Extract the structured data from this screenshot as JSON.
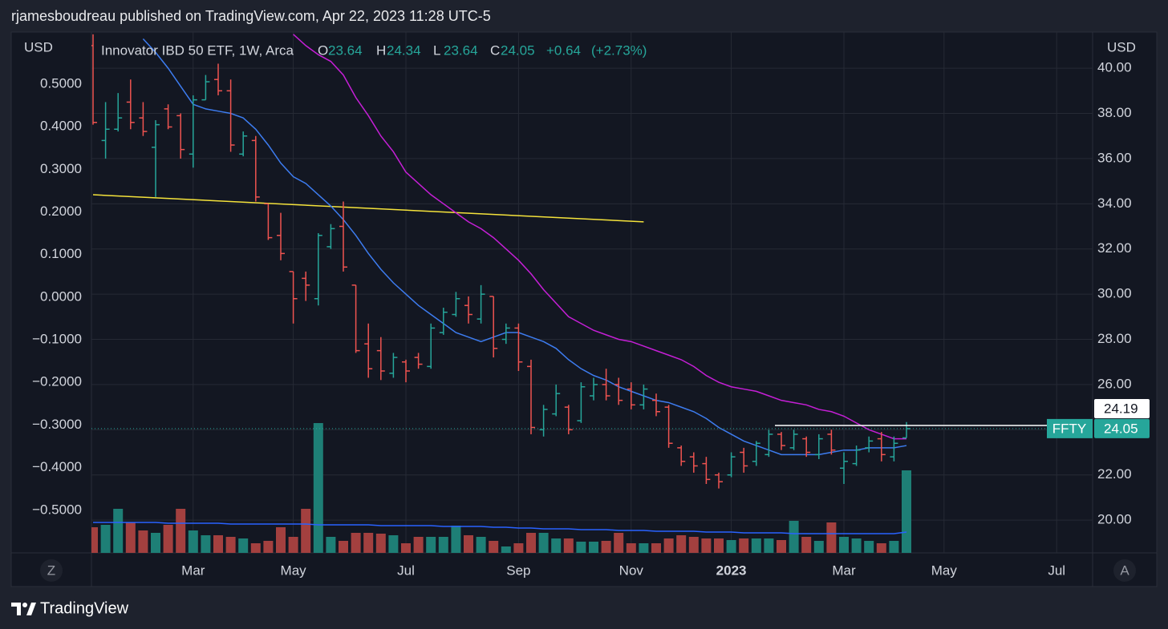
{
  "header": "rjamesboudreau published on TradingView.com, Apr 22, 2023 11:28 UTC-5",
  "footer": "TradingView",
  "chart_data": {
    "type": "ohlc",
    "title": "Innovator IBD 50 ETF, 1W, Arca",
    "symbol": "FFTY",
    "legend_labels": {
      "open": "O",
      "high": "H",
      "low": "L",
      "close": "C"
    },
    "change": {
      "value": 0.64,
      "label": "+0.64"
    },
    "change_pct": {
      "value": 2.73,
      "label": "(+2.73%)"
    },
    "ylabel": "USD",
    "y2label": "USD",
    "axis_buttons": [
      "Z",
      "A"
    ],
    "up_color": "#26a69a",
    "down_color": "#ef5350",
    "volume_up_color": "#1e7f76",
    "volume_down_color": "#a3403f",
    "volume_ma_color": "#2962ff",
    "grid": true,
    "categories": [
      null,
      null,
      null,
      null,
      null,
      null,
      null,
      null,
      "Mar",
      null,
      null,
      null,
      null,
      null,
      null,
      null,
      "May",
      null,
      null,
      null,
      null,
      null,
      null,
      null,
      null,
      "Jul",
      null,
      null,
      null,
      null,
      null,
      null,
      null,
      null,
      "Sep",
      null,
      null,
      null,
      null,
      null,
      null,
      null,
      null,
      "Nov",
      null,
      null,
      null,
      null,
      null,
      null,
      null,
      "2023",
      null,
      null,
      null,
      null,
      null,
      null,
      null,
      null,
      "Mar",
      null,
      null,
      null,
      null,
      null,
      null,
      null,
      "May",
      null,
      null,
      null,
      null,
      null,
      null,
      null,
      null,
      "Jul",
      null,
      null
    ],
    "open": [
      41.0,
      36.8,
      37.3,
      38.5,
      37.8,
      36.5,
      38.2,
      37.9,
      36.2,
      38.6,
      39.5,
      39.0,
      36.2,
      36.8,
      34.0,
      32.6,
      31.0,
      30.7,
      29.8,
      32.1,
      33.0,
      30.4,
      27.8,
      27.5,
      26.5,
      27.0,
      27.2,
      26.8,
      28.3,
      29.1,
      29.5,
      28.9,
      29.9,
      28.0,
      28.5,
      26.8,
      24.0,
      24.7,
      25.0,
      24.4,
      25.5,
      26.0,
      26.0,
      25.8,
      25.1,
      25.3,
      25.0,
      23.2,
      22.8,
      22.5,
      22.0,
      22.0,
      23.0,
      22.6,
      22.9,
      23.8,
      23.2,
      23.6,
      22.9,
      23.8,
      22.3,
      22.5,
      23.2,
      23.6,
      22.8,
      23.64,
      null,
      null,
      null,
      null,
      null,
      null,
      null,
      null,
      null,
      null,
      null,
      null,
      null,
      null
    ],
    "high": [
      41.5,
      38.5,
      38.9,
      39.5,
      38.5,
      37.7,
      38.4,
      38.0,
      38.8,
      39.7,
      40.2,
      39.5,
      37.2,
      37.0,
      34.0,
      33.6,
      31.0,
      31.0,
      32.7,
      33.1,
      34.1,
      30.4,
      28.7,
      28.1,
      27.4,
      27.1,
      27.4,
      28.7,
      29.4,
      30.1,
      29.9,
      30.4,
      29.9,
      28.7,
      28.7,
      27.1,
      25.1,
      26.0,
      25.1,
      26.1,
      26.3,
      26.7,
      26.3,
      26.1,
      26.0,
      25.6,
      25.1,
      23.3,
      23.0,
      22.8,
      22.1,
      23.0,
      23.2,
      23.5,
      24.0,
      23.9,
      24.0,
      23.7,
      23.8,
      24.0,
      23.0,
      23.3,
      23.7,
      23.9,
      23.7,
      24.34,
      null,
      null,
      null,
      null,
      null,
      null,
      null,
      null,
      null,
      null,
      null,
      null,
      null,
      null
    ],
    "low": [
      37.5,
      36.0,
      37.2,
      37.3,
      37.0,
      34.3,
      37.3,
      36.0,
      35.6,
      38.6,
      38.8,
      36.3,
      36.1,
      34.1,
      32.4,
      31.5,
      28.7,
      29.7,
      29.5,
      32.0,
      31.0,
      27.4,
      26.3,
      26.2,
      26.3,
      26.1,
      26.7,
      26.7,
      28.2,
      29.0,
      28.7,
      28.7,
      27.2,
      27.8,
      26.6,
      23.8,
      23.7,
      24.6,
      23.8,
      24.3,
      25.3,
      25.3,
      25.1,
      24.9,
      24.9,
      24.6,
      23.2,
      22.4,
      22.1,
      21.6,
      21.4,
      21.9,
      22.1,
      22.4,
      22.8,
      23.1,
      23.1,
      22.8,
      22.7,
      22.9,
      21.6,
      22.4,
      23.0,
      22.6,
      22.6,
      23.64,
      null,
      null,
      null,
      null,
      null,
      null,
      null,
      null,
      null,
      null,
      null,
      null,
      null,
      null
    ],
    "close": [
      37.6,
      37.3,
      37.8,
      37.6,
      37.2,
      37.5,
      37.4,
      36.4,
      38.6,
      39.4,
      39.0,
      36.6,
      37.0,
      34.3,
      32.5,
      31.8,
      29.8,
      30.4,
      32.6,
      32.9,
      31.2,
      27.5,
      26.7,
      26.6,
      27.2,
      26.6,
      26.9,
      28.5,
      29.2,
      29.8,
      29.1,
      30.0,
      27.6,
      28.5,
      27.0,
      24.1,
      24.9,
      25.6,
      24.0,
      25.9,
      26.0,
      25.5,
      25.3,
      25.1,
      25.8,
      24.8,
      23.4,
      22.6,
      22.4,
      21.8,
      21.7,
      22.8,
      22.4,
      23.4,
      23.8,
      23.3,
      23.8,
      23.0,
      23.6,
      23.1,
      22.6,
      23.1,
      23.5,
      22.9,
      23.4,
      24.05,
      null,
      null,
      null,
      null,
      null,
      null,
      null,
      null,
      null,
      null,
      null,
      null,
      null,
      null
    ],
    "volume": [
      32,
      35,
      55,
      38,
      28,
      25,
      35,
      55,
      28,
      22,
      22,
      20,
      18,
      12,
      15,
      32,
      20,
      55,
      162,
      20,
      15,
      25,
      25,
      24,
      22,
      12,
      20,
      20,
      20,
      34,
      22,
      20,
      15,
      8,
      12,
      25,
      25,
      18,
      18,
      14,
      14,
      15,
      25,
      12,
      12,
      12,
      18,
      22,
      20,
      18,
      18,
      16,
      18,
      18,
      18,
      16,
      40,
      20,
      15,
      38,
      20,
      18,
      15,
      12,
      15,
      103,
      null,
      null,
      null,
      null,
      null,
      null,
      null,
      null,
      null,
      null,
      null,
      null,
      null,
      null
    ],
    "volume_ma": [
      38,
      38,
      38,
      38,
      38,
      38,
      37,
      37,
      37,
      37,
      37,
      36,
      36,
      36,
      36,
      36,
      36,
      36,
      35,
      35,
      35,
      35,
      35,
      34,
      34,
      34,
      34,
      34,
      33,
      33,
      33,
      33,
      32,
      32,
      31,
      31,
      30,
      30,
      30,
      29,
      29,
      29,
      28,
      28,
      28,
      27,
      27,
      27,
      27,
      26,
      26,
      26,
      25,
      25,
      25,
      25,
      24,
      24,
      24,
      24,
      24,
      24,
      24,
      24,
      24,
      26,
      null,
      null,
      null,
      null,
      null,
      null,
      null,
      null,
      null,
      null,
      null,
      null,
      null,
      null
    ],
    "moving_averages": [
      {
        "color": "#3d7cf0",
        "values": [
          null,
          null,
          null,
          null,
          41.3,
          40.7,
          40.0,
          39.2,
          38.4,
          38.2,
          38.1,
          38.0,
          37.8,
          37.3,
          36.6,
          35.8,
          35.2,
          34.9,
          34.4,
          33.9,
          33.3,
          32.6,
          31.8,
          31.1,
          30.5,
          30.0,
          29.5,
          29.1,
          28.7,
          28.3,
          28.1,
          27.9,
          28.1,
          28.3,
          28.3,
          28.1,
          27.9,
          27.6,
          27.1,
          26.7,
          26.4,
          26.2,
          25.9,
          25.7,
          25.5,
          25.3,
          25.2,
          25.0,
          24.8,
          24.5,
          24.1,
          23.8,
          23.5,
          23.3,
          23.1,
          22.9,
          22.9,
          22.9,
          22.9,
          23.0,
          23.1,
          23.1,
          23.2,
          23.2,
          23.2,
          23.3,
          null,
          null,
          null,
          null,
          null,
          null,
          null,
          null,
          null,
          null,
          null,
          null,
          null,
          null
        ]
      },
      {
        "color": "#c51fd6",
        "values": [
          null,
          null,
          null,
          null,
          null,
          null,
          null,
          null,
          null,
          null,
          null,
          null,
          null,
          null,
          null,
          null,
          41.5,
          41.0,
          40.6,
          40.3,
          39.7,
          38.7,
          37.9,
          37.0,
          36.3,
          35.4,
          34.9,
          34.4,
          34.0,
          33.6,
          33.2,
          32.9,
          32.5,
          32.0,
          31.5,
          30.9,
          30.2,
          29.6,
          29.0,
          28.7,
          28.4,
          28.2,
          28.0,
          27.9,
          27.7,
          27.5,
          27.3,
          27.1,
          26.8,
          26.4,
          26.1,
          25.9,
          25.8,
          25.7,
          25.5,
          25.3,
          25.2,
          25.1,
          24.9,
          24.8,
          24.6,
          24.3,
          24.0,
          23.8,
          23.6,
          23.6,
          null,
          null,
          null,
          null,
          null,
          null,
          null,
          null,
          null,
          null,
          null,
          null,
          null,
          null
        ]
      }
    ],
    "trendline": {
      "color": "#f5e33b",
      "points": [
        {
          "x": 0,
          "y": 34.4
        },
        {
          "x": 44,
          "y": 33.2
        }
      ]
    },
    "price_line": {
      "value": 24.19,
      "start": 55,
      "color": "#ffffff"
    },
    "ylim": [
      18.55,
      41.6
    ],
    "yticks": [
      {
        "value": 20,
        "label": "20.00"
      },
      {
        "value": 22,
        "label": "22.00"
      },
      {
        "value": 24,
        "label": "24.00"
      },
      {
        "value": 26,
        "label": "26.00"
      },
      {
        "value": 28,
        "label": "28.00"
      },
      {
        "value": 30,
        "label": "30.00"
      },
      {
        "value": 32,
        "label": "32.00"
      },
      {
        "value": 34,
        "label": "34.00"
      },
      {
        "value": 36,
        "label": "36.00"
      },
      {
        "value": 38,
        "label": "38.00"
      },
      {
        "value": 40,
        "label": "40.00"
      }
    ],
    "y2lim": [
      -0.6,
      0.622
    ],
    "y2ticks": [
      {
        "value": 0.5,
        "label": "0.5000"
      },
      {
        "value": 0.4,
        "label": "0.4000"
      },
      {
        "value": 0.3,
        "label": "0.3000"
      },
      {
        "value": 0.2,
        "label": "0.2000"
      },
      {
        "value": 0.1,
        "label": "0.1000"
      },
      {
        "value": 0,
        "label": "0.0000"
      },
      {
        "value": -0.1,
        "label": "−0.1000"
      },
      {
        "value": -0.2,
        "label": "−0.2000"
      },
      {
        "value": -0.3,
        "label": "−0.3000"
      },
      {
        "value": -0.4,
        "label": "−0.4000"
      },
      {
        "value": -0.5,
        "label": "−0.5000"
      }
    ]
  }
}
